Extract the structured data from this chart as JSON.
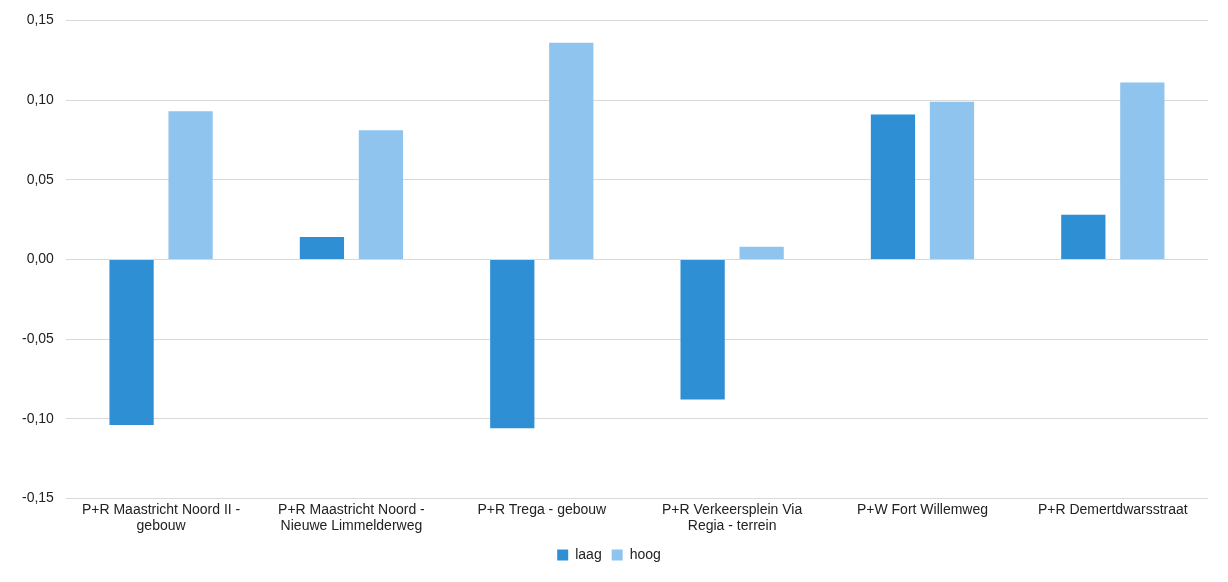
{
  "chart_data": {
    "type": "bar",
    "categories": [
      "P+R Maastricht Noord II - gebouw",
      "P+R Maastricht Noord - Nieuwe Limmelderweg",
      "P+R Trega - gebouw",
      "P+R Verkeersplein Via Regia - terrein",
      "P+W Fort Willemweg",
      "P+R Demertdwarsstraat"
    ],
    "series": [
      {
        "name": "laag",
        "color": "#2e8fd4",
        "values": [
          -0.104,
          0.014,
          -0.106,
          -0.088,
          0.091,
          0.028
        ]
      },
      {
        "name": "hoog",
        "color": "#8ec4ee",
        "values": [
          0.093,
          0.081,
          0.136,
          0.008,
          0.099,
          0.111
        ]
      }
    ],
    "ylim": [
      -0.15,
      0.15
    ],
    "yticks": [
      {
        "value": -0.15,
        "label": "-0,15"
      },
      {
        "value": -0.1,
        "label": "-0,10"
      },
      {
        "value": -0.05,
        "label": "-0,05"
      },
      {
        "value": 0,
        "label": "0,00"
      },
      {
        "value": 0.05,
        "label": "0,05"
      },
      {
        "value": 0.1,
        "label": "0,10"
      },
      {
        "value": 0.15,
        "label": "0,15"
      }
    ],
    "grid": "y",
    "legend": "bottom"
  }
}
